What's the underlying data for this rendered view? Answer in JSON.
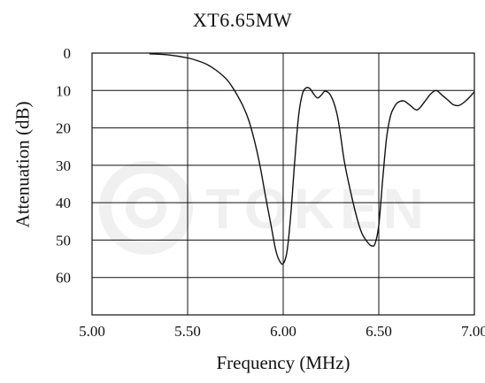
{
  "chart_data": {
    "type": "line",
    "title": "XT6.65MW",
    "xlabel": "Frequency (MHz)",
    "ylabel": "Attenuation (dB)",
    "xlim": [
      5.0,
      7.0
    ],
    "ylim": [
      0,
      70
    ],
    "y_inverted": true,
    "x_ticks": [
      "5.00",
      "5.50",
      "6.00",
      "6.50",
      "7.00"
    ],
    "x_tick_values": [
      5.0,
      5.5,
      6.0,
      6.5,
      7.0
    ],
    "y_ticks": [
      "0",
      "10",
      "20",
      "30",
      "40",
      "50",
      "60"
    ],
    "y_tick_values": [
      0,
      10,
      20,
      30,
      40,
      50,
      60
    ],
    "grid": true,
    "watermark": "TOKEN",
    "line_color": "#111111",
    "grid_color": "#111111",
    "series": [
      {
        "x": [
          5.3,
          5.4,
          5.5,
          5.55,
          5.6,
          5.65,
          5.7,
          5.73,
          5.76,
          5.79,
          5.82,
          5.85,
          5.88,
          5.91,
          5.94,
          5.96,
          5.98,
          6.0,
          6.02,
          6.04,
          6.06,
          6.08,
          6.1,
          6.12,
          6.14,
          6.16,
          6.18,
          6.2,
          6.22,
          6.25,
          6.28,
          6.3,
          6.32,
          6.35,
          6.38,
          6.41,
          6.44,
          6.46,
          6.48,
          6.5,
          6.52,
          6.54,
          6.56,
          6.58,
          6.6,
          6.63,
          6.66,
          6.7,
          6.74,
          6.77,
          6.8,
          6.83,
          6.86,
          6.89,
          6.92,
          6.95,
          6.98,
          7.0
        ],
        "y": [
          0.2,
          0.5,
          1.3,
          2.0,
          3.0,
          4.6,
          6.8,
          8.8,
          11.3,
          14.2,
          18.0,
          23.5,
          30.5,
          39.0,
          47.0,
          52.5,
          55.5,
          56.3,
          53.0,
          43.0,
          29.0,
          17.0,
          11.0,
          9.3,
          9.5,
          11.0,
          12.0,
          11.2,
          10.2,
          11.5,
          16.0,
          22.0,
          29.0,
          36.5,
          43.0,
          48.0,
          50.5,
          51.5,
          51.0,
          46.0,
          34.0,
          23.0,
          17.0,
          14.5,
          13.2,
          12.8,
          13.8,
          15.2,
          13.0,
          11.0,
          10.0,
          11.2,
          12.5,
          13.8,
          14.0,
          13.0,
          11.5,
          10.3
        ]
      }
    ]
  }
}
